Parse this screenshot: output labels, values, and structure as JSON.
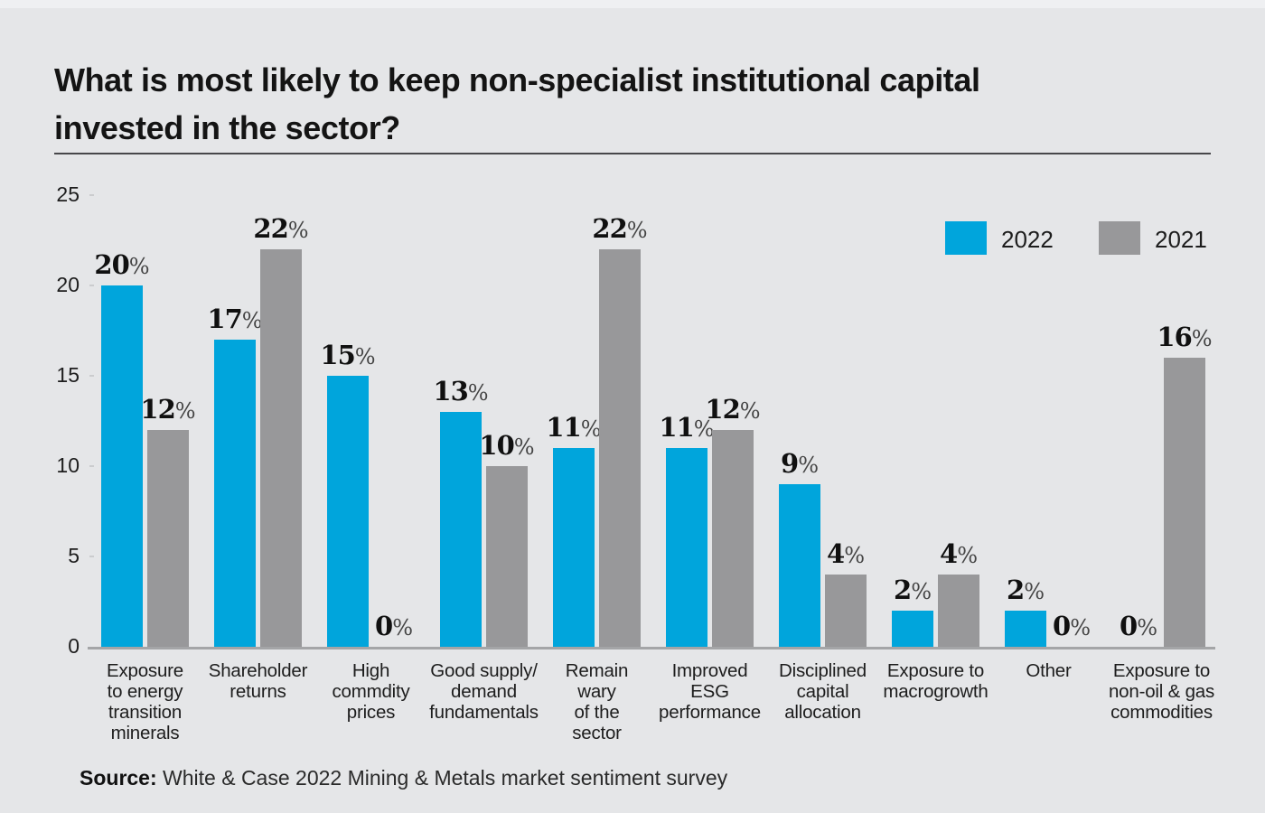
{
  "title": {
    "line1": "What is most likely to keep non-specialist institutional capital",
    "line2": "invested in the sector?"
  },
  "source": {
    "label": "Source:",
    "text": " White & Case 2022 Mining & Metals market sentiment survey"
  },
  "colors": {
    "background": "#e5e6e8",
    "accent_2022": "#00a5dc",
    "accent_2021": "#98989a",
    "axis_line": "#a4a5a7",
    "text": "#1a1a1a"
  },
  "chart_data": {
    "type": "bar",
    "title": "What is most likely to keep non-specialist institutional capital invested in the sector?",
    "categories": [
      "Exposure to energy transition minerals",
      "Shareholder returns",
      "High commdity prices",
      "Good supply/ demand fundamentals",
      "Remain wary of the sector",
      "Improved ESG performance",
      "Disciplined capital allocation",
      "Exposure to macrogrowth",
      "Other",
      "Exposure to non-oil & gas commodities"
    ],
    "category_lines": [
      [
        "Exposure",
        "to energy",
        "transition",
        "minerals"
      ],
      [
        "Shareholder",
        "returns"
      ],
      [
        "High",
        "commdity",
        "prices"
      ],
      [
        "Good supply/",
        "demand",
        "fundamentals"
      ],
      [
        "Remain",
        "wary",
        "of the",
        "sector"
      ],
      [
        "Improved",
        "ESG",
        "performance"
      ],
      [
        "Disciplined",
        "capital",
        "allocation"
      ],
      [
        "Exposure to",
        "macrogrowth"
      ],
      [
        "Other"
      ],
      [
        "Exposure to",
        "non-oil & gas",
        "commodities"
      ]
    ],
    "series": [
      {
        "name": "2022",
        "color": "#00a5dc",
        "values": [
          20,
          17,
          15,
          13,
          11,
          11,
          9,
          2,
          2,
          0
        ]
      },
      {
        "name": "2021",
        "color": "#98989a",
        "values": [
          12,
          22,
          0,
          10,
          22,
          12,
          4,
          4,
          0,
          16
        ]
      }
    ],
    "value_suffix": "%",
    "xlabel": "",
    "ylabel": "",
    "ylim": [
      0,
      25
    ],
    "yticks": [
      0,
      5,
      10,
      15,
      20,
      25
    ],
    "grid": false,
    "legend_position": "top-right",
    "source": "Source: White & Case 2022 Mining & Metals market sentiment survey"
  }
}
